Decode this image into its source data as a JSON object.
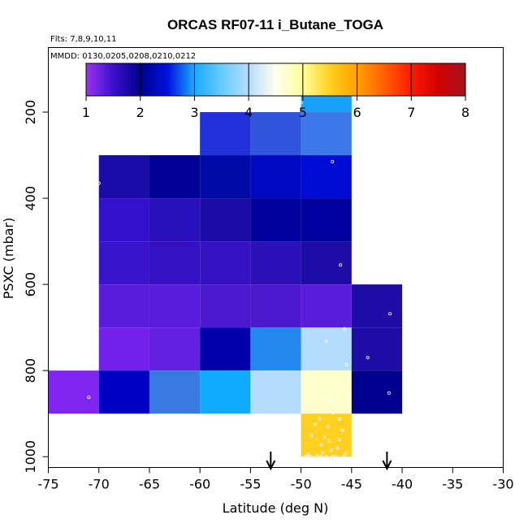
{
  "chart_data": {
    "type": "heatmap",
    "title": "ORCAS RF07-11 i_Butane_TOGA",
    "flights_note": "Flts: 7,8,9,10,11",
    "dates_note": "MMDD: 0130,0205,0208,0210,0212",
    "xlabel": "Latitude (deg N)",
    "ylabel": "PSXC (mbar)",
    "xlim": [
      -75,
      -30
    ],
    "ylim": [
      1025,
      50
    ],
    "xticks": [
      "-75",
      "-70",
      "-65",
      "-60",
      "-55",
      "-50",
      "-45",
      "-40",
      "-35",
      "-30"
    ],
    "xtick_values": [
      -75,
      -70,
      -65,
      -60,
      -55,
      -50,
      -45,
      -40,
      -35,
      -30
    ],
    "yticks": [
      "200",
      "400",
      "600",
      "800",
      "1000"
    ],
    "ytick_values": [
      200,
      400,
      600,
      800,
      1000
    ],
    "colorbar": {
      "min": 1,
      "max": 8,
      "ticks": [
        "1",
        "2",
        "3",
        "4",
        "5",
        "6",
        "7",
        "8"
      ],
      "tick_values": [
        1,
        2,
        3,
        4,
        5,
        6,
        7,
        8
      ],
      "stops": [
        {
          "v": 1.0,
          "c": "#9a34f0"
        },
        {
          "v": 1.5,
          "c": "#3a10cc"
        },
        {
          "v": 2.0,
          "c": "#00008e"
        },
        {
          "v": 2.5,
          "c": "#0011dd"
        },
        {
          "v": 3.0,
          "c": "#1aaaff"
        },
        {
          "v": 3.5,
          "c": "#66ccff"
        },
        {
          "v": 4.0,
          "c": "#b7ddff"
        },
        {
          "v": 4.5,
          "c": "#ffffee"
        },
        {
          "v": 5.0,
          "c": "#ffff99"
        },
        {
          "v": 5.5,
          "c": "#ffd020"
        },
        {
          "v": 6.0,
          "c": "#ffa000"
        },
        {
          "v": 6.5,
          "c": "#ff6000"
        },
        {
          "v": 7.0,
          "c": "#ff1a00"
        },
        {
          "v": 7.5,
          "c": "#d00000"
        },
        {
          "v": 8.0,
          "c": "#a11520"
        }
      ]
    },
    "cells": [
      {
        "lat": [
          -50,
          -45
        ],
        "p": [
          100,
          200
        ],
        "value": 3.0,
        "color": "#18a0fc"
      },
      {
        "lat": [
          -60,
          -55
        ],
        "p": [
          200,
          300
        ],
        "value": 2.5,
        "color": "#2130d8"
      },
      {
        "lat": [
          -55,
          -50
        ],
        "p": [
          200,
          300
        ],
        "value": 2.6,
        "color": "#3054dc"
      },
      {
        "lat": [
          -50,
          -45
        ],
        "p": [
          200,
          300
        ],
        "value": 2.8,
        "color": "#3c78e8"
      },
      {
        "lat": [
          -70,
          -65
        ],
        "p": [
          300,
          400
        ],
        "value": 1.7,
        "color": "#1a0ca8"
      },
      {
        "lat": [
          -65,
          -60
        ],
        "p": [
          300,
          400
        ],
        "value": 2.0,
        "color": "#000094"
      },
      {
        "lat": [
          -60,
          -55
        ],
        "p": [
          300,
          400
        ],
        "value": 2.1,
        "color": "#000aa6"
      },
      {
        "lat": [
          -55,
          -50
        ],
        "p": [
          300,
          400
        ],
        "value": 2.3,
        "color": "#0008c2"
      },
      {
        "lat": [
          -50,
          -45
        ],
        "p": [
          300,
          400
        ],
        "value": 2.4,
        "color": "#000cd6"
      },
      {
        "lat": [
          -70,
          -65
        ],
        "p": [
          400,
          500
        ],
        "value": 1.5,
        "color": "#3210cc"
      },
      {
        "lat": [
          -65,
          -60
        ],
        "p": [
          400,
          500
        ],
        "value": 1.7,
        "color": "#2a10bc"
      },
      {
        "lat": [
          -60,
          -55
        ],
        "p": [
          400,
          500
        ],
        "value": 1.8,
        "color": "#1a0aa6"
      },
      {
        "lat": [
          -55,
          -50
        ],
        "p": [
          400,
          500
        ],
        "value": 2.0,
        "color": "#00009c"
      },
      {
        "lat": [
          -50,
          -45
        ],
        "p": [
          400,
          500
        ],
        "value": 2.0,
        "color": "#00009e"
      },
      {
        "lat": [
          -70,
          -65
        ],
        "p": [
          500,
          600
        ],
        "value": 1.4,
        "color": "#3a14cc"
      },
      {
        "lat": [
          -65,
          -60
        ],
        "p": [
          500,
          600
        ],
        "value": 1.5,
        "color": "#3412c4"
      },
      {
        "lat": [
          -60,
          -55
        ],
        "p": [
          500,
          600
        ],
        "value": 1.5,
        "color": "#3412c4"
      },
      {
        "lat": [
          -55,
          -50
        ],
        "p": [
          500,
          600
        ],
        "value": 1.6,
        "color": "#2a10b6"
      },
      {
        "lat": [
          -50,
          -45
        ],
        "p": [
          500,
          600
        ],
        "value": 1.8,
        "color": "#1e0ca6"
      },
      {
        "lat": [
          -70,
          -65
        ],
        "p": [
          600,
          700
        ],
        "value": 1.3,
        "color": "#5a1cdc"
      },
      {
        "lat": [
          -65,
          -60
        ],
        "p": [
          600,
          700
        ],
        "value": 1.3,
        "color": "#5a1cdc"
      },
      {
        "lat": [
          -60,
          -55
        ],
        "p": [
          600,
          700
        ],
        "value": 1.4,
        "color": "#4c18d0"
      },
      {
        "lat": [
          -55,
          -50
        ],
        "p": [
          600,
          700
        ],
        "value": 1.4,
        "color": "#4c18d0"
      },
      {
        "lat": [
          -50,
          -45
        ],
        "p": [
          600,
          700
        ],
        "value": 1.3,
        "color": "#5a1cdc"
      },
      {
        "lat": [
          -45,
          -40
        ],
        "p": [
          600,
          700
        ],
        "value": 1.8,
        "color": "#1e0ca6"
      },
      {
        "lat": [
          -70,
          -65
        ],
        "p": [
          700,
          800
        ],
        "value": 1.1,
        "color": "#7420ec"
      },
      {
        "lat": [
          -65,
          -60
        ],
        "p": [
          700,
          800
        ],
        "value": 1.2,
        "color": "#6420e0"
      },
      {
        "lat": [
          -60,
          -55
        ],
        "p": [
          700,
          800
        ],
        "value": 2.2,
        "color": "#0000aa"
      },
      {
        "lat": [
          -55,
          -50
        ],
        "p": [
          700,
          800
        ],
        "value": 3.0,
        "color": "#2288f0"
      },
      {
        "lat": [
          -50,
          -45
        ],
        "p": [
          700,
          800
        ],
        "value": 4.0,
        "color": "#b4dcfc"
      },
      {
        "lat": [
          -45,
          -40
        ],
        "p": [
          700,
          800
        ],
        "value": 1.8,
        "color": "#1e0ca6"
      },
      {
        "lat": [
          -75,
          -70
        ],
        "p": [
          800,
          900
        ],
        "value": 1.0,
        "color": "#8024f0"
      },
      {
        "lat": [
          -70,
          -65
        ],
        "p": [
          800,
          900
        ],
        "value": 2.3,
        "color": "#0000c4"
      },
      {
        "lat": [
          -65,
          -60
        ],
        "p": [
          800,
          900
        ],
        "value": 2.8,
        "color": "#3a78e4"
      },
      {
        "lat": [
          -60,
          -55
        ],
        "p": [
          800,
          900
        ],
        "value": 3.1,
        "color": "#10aaff"
      },
      {
        "lat": [
          -55,
          -50
        ],
        "p": [
          800,
          900
        ],
        "value": 4.0,
        "color": "#b4dcfc"
      },
      {
        "lat": [
          -50,
          -45
        ],
        "p": [
          800,
          900
        ],
        "value": 4.6,
        "color": "#ffffcc"
      },
      {
        "lat": [
          -45,
          -40
        ],
        "p": [
          800,
          900
        ],
        "value": 2.1,
        "color": "#00008e"
      },
      {
        "lat": [
          -50,
          -45
        ],
        "p": [
          900,
          1000
        ],
        "value": 5.5,
        "color": "#ffd020"
      }
    ],
    "points": [
      [
        -50,
        178
      ],
      [
        -46.9,
        315
      ],
      [
        -70,
        365
      ],
      [
        -46.1,
        555
      ],
      [
        -41.2,
        668
      ],
      [
        -45.7,
        703
      ],
      [
        -47.5,
        732
      ],
      [
        -43.4,
        770
      ],
      [
        -45.5,
        786
      ],
      [
        -71,
        862
      ],
      [
        -41.3,
        852
      ],
      [
        -46.3,
        845
      ],
      [
        -47,
        870
      ],
      [
        -46.8,
        898
      ],
      [
        -48.2,
        912
      ],
      [
        -46.2,
        912
      ],
      [
        -47.3,
        930
      ],
      [
        -49,
        950
      ],
      [
        -46.2,
        960
      ],
      [
        -48,
        972
      ],
      [
        -47,
        985
      ],
      [
        -49.3,
        995
      ],
      [
        -48.4,
        998
      ],
      [
        -47.5,
        1000
      ],
      [
        -46.6,
        998
      ],
      [
        -45.8,
        1000
      ],
      [
        -46.9,
        1000
      ],
      [
        -48,
        1000
      ],
      [
        -49,
        1000
      ],
      [
        -47.7,
        955
      ],
      [
        -45.9,
        938
      ],
      [
        -48.6,
        925
      ],
      [
        -46.4,
        980
      ],
      [
        -47.9,
        990
      ],
      [
        -45.6,
        993
      ],
      [
        -49.6,
        1000
      ],
      [
        -47.2,
        963
      ]
    ],
    "arrows_lat": [
      -53,
      -41.5
    ]
  }
}
